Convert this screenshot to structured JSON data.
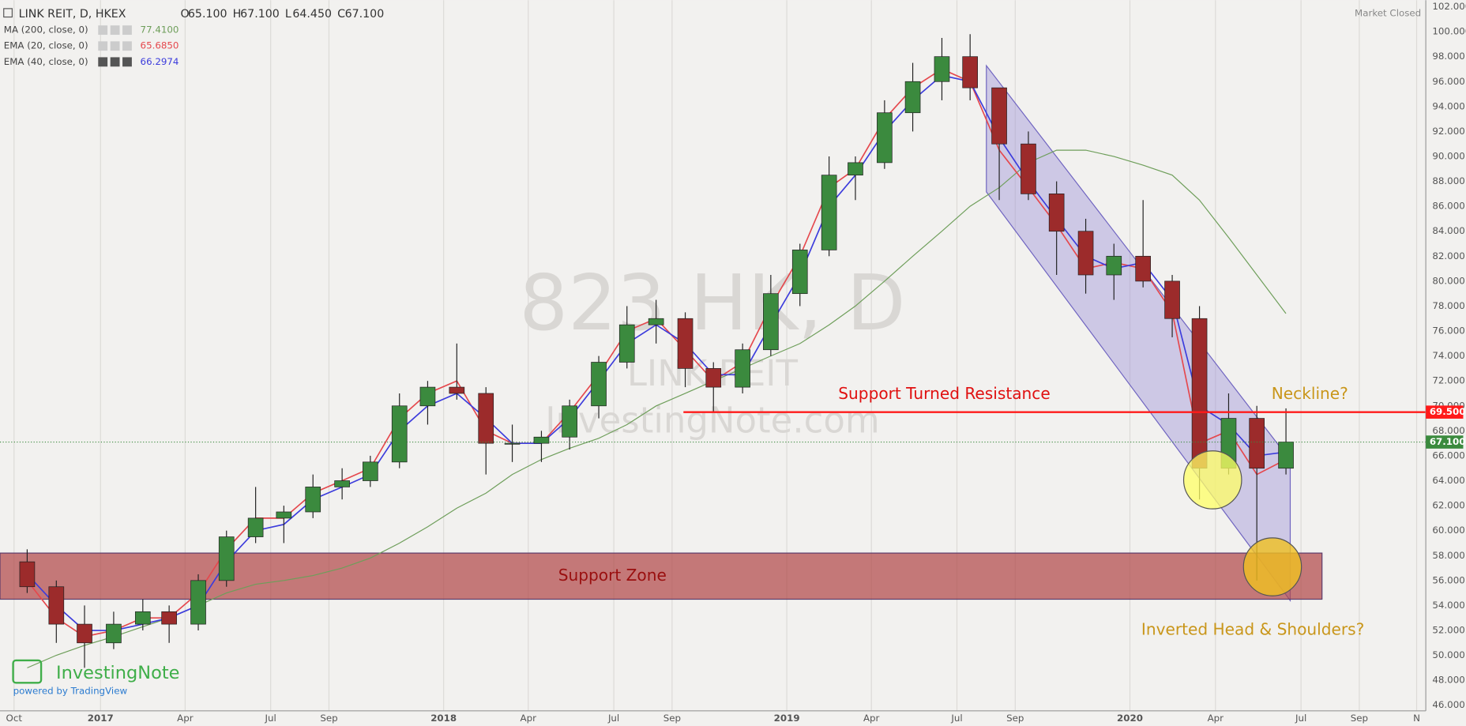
{
  "chart_data": {
    "type": "candlestick",
    "title": "LINK REIT, D, HKEX",
    "ohlc_legend": [
      {
        "prefix": "O",
        "value": 65.1,
        "label": "65.100"
      },
      {
        "prefix": "H",
        "value": 67.1,
        "label": "67.100"
      },
      {
        "prefix": "L",
        "value": 64.45,
        "label": "64.450"
      },
      {
        "prefix": "C",
        "value": 67.1,
        "label": "67.100"
      }
    ],
    "status": "Market Closed",
    "watermark": [
      "823 HK, D",
      "LINK REIT",
      "InvestingNote.com"
    ],
    "logo": {
      "name": "InvestingNote",
      "sub": "powered by TradingView"
    },
    "x": [
      "2016-10",
      "2016-11",
      "2016-12",
      "2017-01",
      "2017-02",
      "2017-03",
      "2017-04",
      "2017-05",
      "2017-06",
      "2017-07",
      "2017-08",
      "2017-09",
      "2017-10",
      "2017-11",
      "2017-12",
      "2018-01",
      "2018-02",
      "2018-03",
      "2018-04",
      "2018-05",
      "2018-06",
      "2018-07",
      "2018-08",
      "2018-09",
      "2018-10",
      "2018-11",
      "2018-12",
      "2019-01",
      "2019-02",
      "2019-03",
      "2019-04",
      "2019-05",
      "2019-06",
      "2019-07",
      "2019-08",
      "2019-09",
      "2019-10",
      "2019-11",
      "2019-12",
      "2020-01",
      "2020-02",
      "2020-03",
      "2020-04",
      "2020-05",
      "2020-06"
    ],
    "open": [
      57.5,
      55.5,
      52.5,
      51,
      52.5,
      53.5,
      52.5,
      56,
      59.5,
      61,
      61.5,
      63.5,
      64,
      65.5,
      70,
      71.5,
      71,
      67,
      67,
      67.5,
      70,
      73.5,
      76.5,
      77,
      73,
      71.5,
      74.5,
      79,
      82.5,
      88.5,
      89.5,
      93.5,
      96,
      98,
      95.5,
      91,
      87,
      84,
      80.5,
      82,
      80,
      77,
      65,
      69,
      65
    ],
    "high": [
      58.5,
      56,
      54,
      53.5,
      54.5,
      54,
      56.5,
      60,
      63.5,
      62,
      64.5,
      65,
      66,
      71,
      72,
      75,
      71.5,
      68.5,
      68,
      70.5,
      74,
      78,
      78.5,
      77.5,
      73.5,
      75,
      80.5,
      83,
      90,
      90,
      94.5,
      97.5,
      99.5,
      99.8,
      95.5,
      92,
      88,
      85,
      83,
      86.5,
      80.5,
      78,
      71,
      70,
      69.8
    ],
    "low": [
      55,
      51,
      49,
      50.5,
      52,
      51,
      52,
      55.5,
      59,
      59,
      61,
      62.5,
      63.5,
      65,
      68.5,
      70.5,
      64.5,
      65.5,
      65.5,
      66.5,
      69,
      73,
      75,
      71.5,
      69.5,
      71,
      74,
      78,
      82,
      86.5,
      89,
      92,
      94.5,
      94.5,
      86.5,
      86.5,
      80.5,
      79,
      78.5,
      79.5,
      75.5,
      62.5,
      64.5,
      56,
      64.5
    ],
    "close": [
      55.5,
      52.5,
      51,
      52.5,
      53.5,
      52.5,
      56,
      59.5,
      61,
      61.5,
      63.5,
      64,
      65.5,
      70,
      71.5,
      71,
      67,
      67,
      67.5,
      70,
      73.5,
      76.5,
      77,
      73,
      71.5,
      74.5,
      79,
      82.5,
      88.5,
      89.5,
      93.5,
      96,
      98,
      95.5,
      91,
      87,
      84,
      80.5,
      82,
      80,
      77,
      65,
      69,
      65,
      67.1
    ],
    "colors": {
      "up": "#3b8a3e",
      "down": "#9c2b2b"
    },
    "indicators": [
      {
        "name": "MA (200, close, 0)",
        "color": "#6e9e5a",
        "last": {
          "value": 77.41,
          "label": "77.4100"
        },
        "values": [
          49,
          50,
          50.8,
          51.5,
          52.3,
          53,
          54,
          55,
          55.7,
          56,
          56.4,
          57,
          57.8,
          59,
          60.3,
          61.8,
          63,
          64.5,
          65.7,
          66.6,
          67.4,
          68.5,
          70,
          71,
          72,
          73,
          74,
          75,
          76.5,
          78,
          80,
          82,
          84,
          86,
          87.5,
          89.5,
          90.5,
          90.5,
          90,
          89.3,
          88.5,
          86.5,
          83.5,
          80.5,
          77.4
        ]
      },
      {
        "name": "EMA (20, close, 0)",
        "color": "#e5484d",
        "last": {
          "value": 65.685,
          "label": "65.6850"
        },
        "values": [
          56,
          53,
          51.5,
          52,
          53,
          53,
          55,
          58.5,
          61,
          61,
          63,
          64,
          65,
          69,
          71,
          72,
          68,
          67,
          67,
          69.5,
          72.5,
          76,
          77,
          74.5,
          72,
          73.5,
          78,
          82,
          87.5,
          89,
          93,
          95.5,
          97,
          96,
          90.5,
          87.5,
          84.5,
          81,
          81.5,
          81,
          77.5,
          67,
          68,
          64.5,
          65.7
        ]
      },
      {
        "name": "EMA (40, close, 0)",
        "color": "#3c3cdc",
        "last": {
          "value": 66.2974,
          "label": "66.2974"
        },
        "values": [
          56.5,
          54,
          52,
          52,
          52.5,
          53,
          54,
          57.5,
          60,
          60.5,
          62.5,
          63.5,
          64.5,
          68,
          70,
          71,
          69,
          67,
          67,
          69,
          72,
          75,
          76.5,
          75,
          72.5,
          72.5,
          76.5,
          80.5,
          86,
          88.5,
          92,
          94.5,
          96.5,
          96,
          91.5,
          88,
          85,
          82,
          81,
          81.5,
          78.5,
          70,
          68.5,
          66,
          66.3
        ]
      }
    ],
    "ylim": [
      46,
      102
    ],
    "yticks": [
      {
        "value": 46,
        "label": "46.000"
      },
      {
        "value": 48,
        "label": "48.000"
      },
      {
        "value": 50,
        "label": "50.000"
      },
      {
        "value": 52,
        "label": "52.000"
      },
      {
        "value": 54,
        "label": "54.000"
      },
      {
        "value": 56,
        "label": "56.000"
      },
      {
        "value": 58,
        "label": "58.000"
      },
      {
        "value": 60,
        "label": "60.000"
      },
      {
        "value": 62,
        "label": "62.000"
      },
      {
        "value": 64,
        "label": "64.000"
      },
      {
        "value": 66,
        "label": "66.000"
      },
      {
        "value": 68,
        "label": "68.000"
      },
      {
        "value": 70,
        "label": "70.000"
      },
      {
        "value": 72,
        "label": "72.000"
      },
      {
        "value": 74,
        "label": "74.000"
      },
      {
        "value": 76,
        "label": "76.000"
      },
      {
        "value": 78,
        "label": "78.000"
      },
      {
        "value": 80,
        "label": "80.000"
      },
      {
        "value": 82,
        "label": "82.000"
      },
      {
        "value": 84,
        "label": "84.000"
      },
      {
        "value": 86,
        "label": "86.000"
      },
      {
        "value": 88,
        "label": "88.000"
      },
      {
        "value": 90,
        "label": "90.000"
      },
      {
        "value": 92,
        "label": "92.000"
      },
      {
        "value": 94,
        "label": "94.000"
      },
      {
        "value": 96,
        "label": "96.000"
      },
      {
        "value": 98,
        "label": "98.000"
      },
      {
        "value": 100,
        "label": "100.000"
      },
      {
        "value": 102,
        "label": "102.000"
      }
    ],
    "xticks": [
      {
        "value": "2016-10",
        "label": "Oct"
      },
      {
        "value": "2017-01",
        "label": "2017"
      },
      {
        "value": "2017-04",
        "label": "Apr"
      },
      {
        "value": "2017-07",
        "label": "Jul"
      },
      {
        "value": "2017-09",
        "label": "Sep"
      },
      {
        "value": "2018-01",
        "label": "2018"
      },
      {
        "value": "2018-04",
        "label": "Apr"
      },
      {
        "value": "2018-07",
        "label": "Jul"
      },
      {
        "value": "2018-09",
        "label": "Sep"
      },
      {
        "value": "2019-01",
        "label": "2019"
      },
      {
        "value": "2019-04",
        "label": "Apr"
      },
      {
        "value": "2019-07",
        "label": "Jul"
      },
      {
        "value": "2019-09",
        "label": "Sep"
      },
      {
        "value": "2020-01",
        "label": "2020"
      },
      {
        "value": "2020-04",
        "label": "Apr"
      },
      {
        "value": "2020-07",
        "label": "Jul"
      },
      {
        "value": "2020-09",
        "label": "Sep"
      },
      {
        "value": "2020-11",
        "label": "N"
      }
    ],
    "grid": true,
    "price_lines": [
      {
        "value": 69.5,
        "label": "69.500",
        "color": "#ff1a1a",
        "style": "solid"
      },
      {
        "value": 67.1,
        "label": "67.100",
        "color": "#3b8a3e",
        "style": "dotted"
      }
    ],
    "zones": [
      {
        "label": "Support Zone",
        "range": [
          54.5,
          58.2
        ],
        "color": "#b24a4a"
      }
    ],
    "annotations": {
      "resistance": "Support Turned Resistance",
      "neckline": "Neckline?",
      "pattern": "Inverted Head & Shoulders?"
    }
  }
}
